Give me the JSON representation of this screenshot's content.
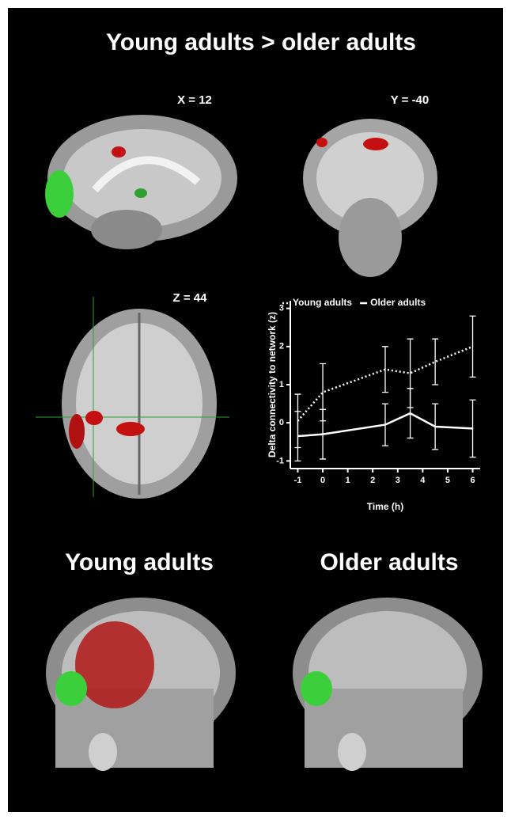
{
  "title": "Young adults  >  older adults",
  "slices": [
    {
      "label": "X = 12"
    },
    {
      "label": "Y = -40"
    },
    {
      "label": "Z = 44"
    }
  ],
  "renderings": [
    {
      "label": "Young adults"
    },
    {
      "label": "Older adults"
    }
  ],
  "chart_data": {
    "type": "line",
    "y_label": "Delta connectivity to network (z)",
    "x_label": "Time (h)",
    "x": [
      -1,
      0,
      2.5,
      3.5,
      4.5,
      6
    ],
    "series": [
      {
        "name": "Young adults",
        "color": "#ffffff",
        "style": "dotted",
        "values": [
          0.05,
          0.8,
          1.4,
          1.3,
          1.6,
          2.0
        ],
        "errors": [
          0.7,
          0.75,
          0.6,
          0.9,
          0.6,
          0.8
        ]
      },
      {
        "name": "Older adults",
        "color": "#ffffff",
        "style": "solid",
        "values": [
          -0.35,
          -0.3,
          -0.05,
          0.25,
          -0.1,
          -0.15
        ],
        "errors": [
          0.65,
          0.65,
          0.55,
          0.65,
          0.6,
          0.75
        ]
      }
    ],
    "xlim": [
      -1.3,
      6.3
    ],
    "xticks": [
      -1,
      0,
      1,
      2,
      3,
      4,
      5,
      6
    ],
    "ylim": [
      -1.2,
      3.2
    ],
    "yticks": [
      -1,
      0,
      1,
      2,
      3
    ],
    "legend": "top",
    "grid": false
  }
}
